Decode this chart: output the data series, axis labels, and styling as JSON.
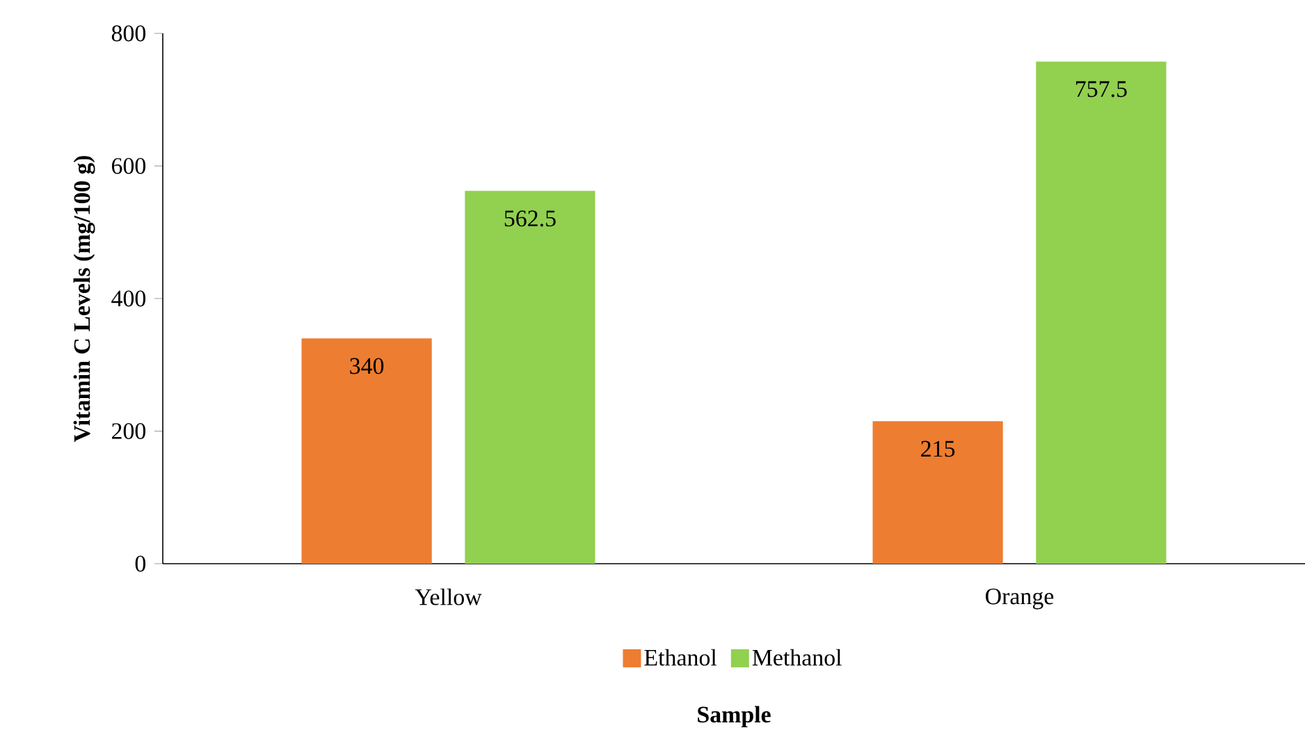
{
  "chart_data": {
    "type": "bar",
    "xlabel": "Sample",
    "ylabel": "Vitamin C Levels (mg/100 g)",
    "categories": [
      "Yellow",
      "Orange"
    ],
    "series": [
      {
        "name": "Ethanol",
        "color": "#ed7d31",
        "values": [
          340,
          215
        ]
      },
      {
        "name": "Methanol",
        "color": "#92d050",
        "values": [
          562.5,
          757.5
        ]
      }
    ],
    "ylim": [
      0,
      800
    ],
    "yticks": [
      0,
      200,
      400,
      600,
      800
    ],
    "grid": false,
    "legend": "bottom",
    "data_labels": true
  }
}
